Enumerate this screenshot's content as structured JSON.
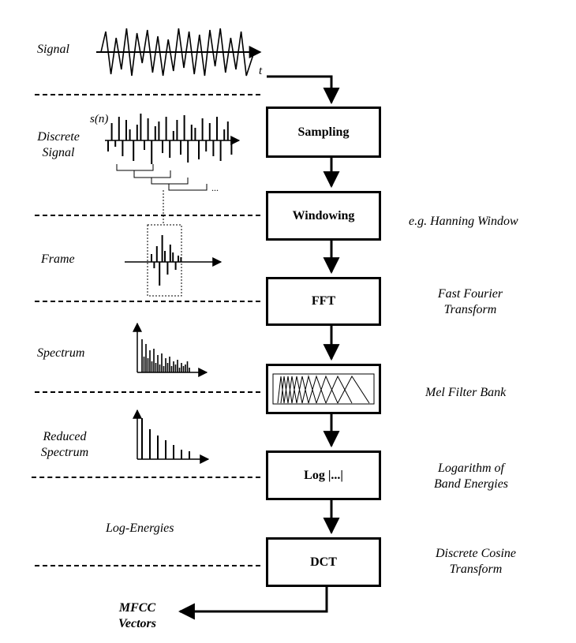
{
  "left_labels": {
    "signal": "Signal",
    "discrete_signal_line1": "Discrete",
    "discrete_signal_line2": "Signal",
    "frame": "Frame",
    "spectrum": "Spectrum",
    "reduced_spectrum_line1": "Reduced",
    "reduced_spectrum_line2": "Spectrum",
    "log_energies": "Log-Energies"
  },
  "plot_labels": {
    "time_axis": "t",
    "sn": "s(n)",
    "ellipsis": "..."
  },
  "process_boxes": {
    "sampling": "Sampling",
    "windowing": "Windowing",
    "fft": "FFT",
    "mel": "",
    "log": "Log |...|",
    "dct": "DCT"
  },
  "right_labels": {
    "windowing_note": "e.g. Hanning Window",
    "fft_line1": "Fast Fourier",
    "fft_line2": "Transform",
    "mel_note": "Mel Filter Bank",
    "log_line1": "Logarithm of",
    "log_line2": "Band Energies",
    "dct_line1": "Discrete Cosine",
    "dct_line2": "Transform"
  },
  "output": {
    "line1": "MFCC",
    "line2": "Vectors"
  }
}
